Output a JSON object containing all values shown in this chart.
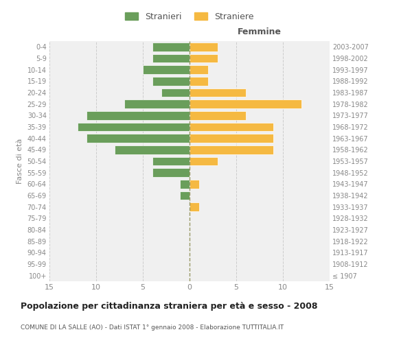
{
  "age_groups": [
    "100+",
    "95-99",
    "90-94",
    "85-89",
    "80-84",
    "75-79",
    "70-74",
    "65-69",
    "60-64",
    "55-59",
    "50-54",
    "45-49",
    "40-44",
    "35-39",
    "30-34",
    "25-29",
    "20-24",
    "15-19",
    "10-14",
    "5-9",
    "0-4"
  ],
  "birth_years": [
    "≤ 1907",
    "1908-1912",
    "1913-1917",
    "1918-1922",
    "1923-1927",
    "1928-1932",
    "1933-1937",
    "1938-1942",
    "1943-1947",
    "1948-1952",
    "1953-1957",
    "1958-1962",
    "1963-1967",
    "1968-1972",
    "1973-1977",
    "1978-1982",
    "1983-1987",
    "1988-1992",
    "1993-1997",
    "1998-2002",
    "2003-2007"
  ],
  "males": [
    0,
    0,
    0,
    0,
    0,
    0,
    0,
    1,
    1,
    4,
    4,
    8,
    11,
    12,
    11,
    7,
    3,
    4,
    5,
    4,
    4
  ],
  "females": [
    0,
    0,
    0,
    0,
    0,
    0,
    1,
    0,
    1,
    0,
    3,
    9,
    9,
    9,
    6,
    12,
    6,
    2,
    2,
    3,
    3
  ],
  "male_color": "#6a9e5b",
  "female_color": "#f5b942",
  "background_color": "#f0f0f0",
  "xlim": 15,
  "title": "Popolazione per cittadinanza straniera per età e sesso - 2008",
  "subtitle": "COMUNE DI LA SALLE (AO) - Dati ISTAT 1° gennaio 2008 - Elaborazione TUTTITALIA.IT",
  "xlabel_right": "Femmine",
  "ylabel_left": "Fasce di età",
  "legend_male": "Stranieri",
  "legend_female": "Straniere",
  "tick_color": "#888888",
  "grid_color": "#cccccc"
}
